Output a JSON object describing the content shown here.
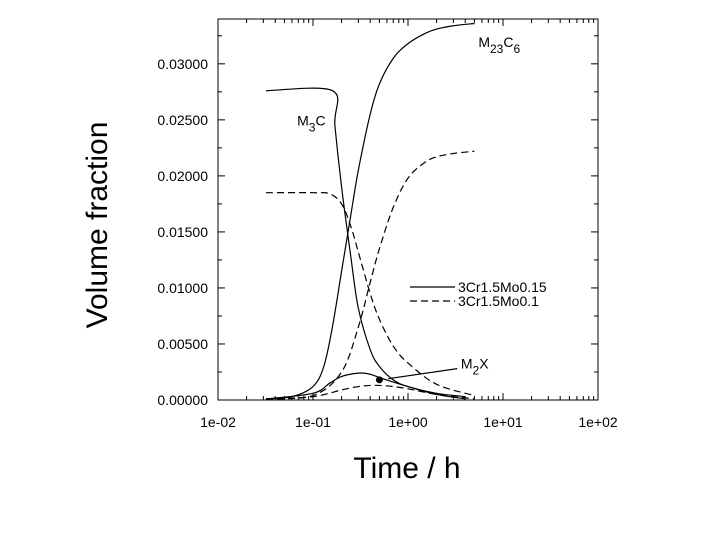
{
  "chart_data": {
    "type": "line",
    "xscale": "log",
    "xlim": [
      0.01,
      100
    ],
    "ylim": [
      0,
      0.034
    ],
    "xlabel": "Time / h",
    "ylabel": "Volume fraction",
    "x_ticks": [
      {
        "value": 0.01,
        "label": "1e-02"
      },
      {
        "value": 0.1,
        "label": "1e-01"
      },
      {
        "value": 1,
        "label": "1e+00"
      },
      {
        "value": 10,
        "label": "1e+01"
      },
      {
        "value": 100,
        "label": "1e+02"
      }
    ],
    "y_ticks": [
      {
        "value": 0,
        "label": "0.00000"
      },
      {
        "value": 0.005,
        "label": "0.00500"
      },
      {
        "value": 0.01,
        "label": "0.01000"
      },
      {
        "value": 0.015,
        "label": "0.01500"
      },
      {
        "value": 0.02,
        "label": "0.02000"
      },
      {
        "value": 0.025,
        "label": "0.02500"
      },
      {
        "value": 0.03,
        "label": "0.03000"
      }
    ],
    "legend": {
      "position": "center-right",
      "entries": [
        {
          "label": "3Cr1.5Mo0.15",
          "style": "solid"
        },
        {
          "label": "3Cr1.5Mo0.1",
          "style": "dashed"
        }
      ]
    },
    "annotations": [
      {
        "base": "M",
        "sub": "23",
        "base2": "C",
        "sub2": "6",
        "at": [
          5.5,
          0.0315
        ]
      },
      {
        "base": "M",
        "sub": "3",
        "base2": "C",
        "sub2": "",
        "at": [
          0.068,
          0.0245
        ]
      },
      {
        "base": "M",
        "sub": "2",
        "base2": "X",
        "sub2": "",
        "at": [
          3.6,
          0.0028
        ]
      }
    ],
    "series": [
      {
        "phase": "M23C6",
        "alloy": "3Cr1.5Mo0.15",
        "style": "solid",
        "x": [
          0.032,
          0.06,
          0.1,
          0.13,
          0.16,
          0.2,
          0.25,
          0.3,
          0.4,
          0.5,
          0.7,
          1.0,
          1.5,
          2.0,
          3.0,
          5.0
        ],
        "y": [
          0.0001,
          0.0003,
          0.0012,
          0.003,
          0.0065,
          0.0115,
          0.0165,
          0.0205,
          0.0255,
          0.0282,
          0.0305,
          0.0318,
          0.0327,
          0.0331,
          0.0334,
          0.0336
        ]
      },
      {
        "phase": "M23C6",
        "alloy": "3Cr1.5Mo0.1",
        "style": "dashed",
        "x": [
          0.032,
          0.1,
          0.2,
          0.3,
          0.4,
          0.5,
          0.7,
          1.0,
          1.5,
          2.0,
          3.0,
          5.0
        ],
        "y": [
          0.0001,
          0.0004,
          0.0025,
          0.0065,
          0.0105,
          0.0135,
          0.0172,
          0.0198,
          0.0212,
          0.0217,
          0.022,
          0.0222
        ]
      },
      {
        "phase": "M3C",
        "alloy": "3Cr1.5Mo0.15",
        "style": "solid",
        "x": [
          0.032,
          0.16,
          0.17,
          0.2,
          0.25,
          0.3,
          0.4,
          0.5,
          0.7,
          1.0,
          2.0,
          4.0
        ],
        "y": [
          0.0276,
          0.0276,
          0.0245,
          0.019,
          0.0128,
          0.0082,
          0.0045,
          0.003,
          0.0018,
          0.0012,
          0.0006,
          0.0003
        ]
      },
      {
        "phase": "M3C",
        "alloy": "3Cr1.5Mo0.1",
        "style": "dashed",
        "x": [
          0.032,
          0.1,
          0.15,
          0.2,
          0.25,
          0.3,
          0.4,
          0.5,
          0.7,
          1.0,
          2.0,
          5.0
        ],
        "y": [
          0.0185,
          0.0185,
          0.0184,
          0.0175,
          0.0155,
          0.0132,
          0.0095,
          0.0072,
          0.0048,
          0.0033,
          0.0014,
          0.0004
        ]
      },
      {
        "phase": "M2X",
        "alloy": "3Cr1.5Mo0.15",
        "style": "solid",
        "x": [
          0.032,
          0.1,
          0.15,
          0.2,
          0.3,
          0.4,
          0.5,
          0.7,
          1.0,
          2.0,
          4.0
        ],
        "y": [
          0.0001,
          0.0006,
          0.0015,
          0.0021,
          0.0024,
          0.0023,
          0.002,
          0.0016,
          0.0012,
          0.0005,
          0.0001
        ]
      },
      {
        "phase": "M2X",
        "alloy": "3Cr1.5Mo0.1",
        "style": "dashed",
        "x": [
          0.032,
          0.1,
          0.2,
          0.3,
          0.4,
          0.5,
          0.7,
          1.0,
          2.0,
          5.0
        ],
        "y": [
          5e-05,
          0.0003,
          0.0009,
          0.0012,
          0.0013,
          0.0013,
          0.0012,
          0.001,
          0.0005,
          0.0001
        ]
      }
    ],
    "marker": {
      "x": 0.5,
      "y": 0.0018
    }
  }
}
